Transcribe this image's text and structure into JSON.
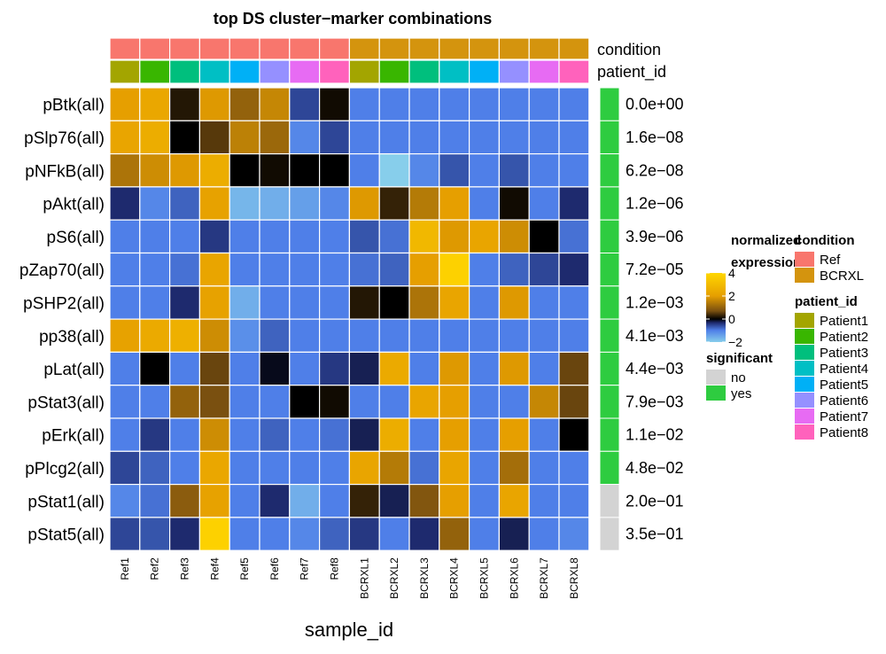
{
  "chart_data": {
    "type": "heatmap",
    "title": "top DS cluster−marker combinations",
    "xlabel": "sample_id",
    "columns": [
      "Ref1",
      "Ref2",
      "Ref3",
      "Ref4",
      "Ref5",
      "Ref6",
      "Ref7",
      "Ref8",
      "BCRXL1",
      "BCRXL2",
      "BCRXL3",
      "BCRXL4",
      "BCRXL5",
      "BCRXL6",
      "BCRXL7",
      "BCRXL8"
    ],
    "column_annotations": {
      "condition": {
        "label": "condition",
        "values": [
          "Ref",
          "Ref",
          "Ref",
          "Ref",
          "Ref",
          "Ref",
          "Ref",
          "Ref",
          "BCRXL",
          "BCRXL",
          "BCRXL",
          "BCRXL",
          "BCRXL",
          "BCRXL",
          "BCRXL",
          "BCRXL"
        ]
      },
      "patient_id": {
        "label": "patient_id",
        "values": [
          "Patient1",
          "Patient2",
          "Patient3",
          "Patient4",
          "Patient5",
          "Patient6",
          "Patient7",
          "Patient8",
          "Patient1",
          "Patient2",
          "Patient3",
          "Patient4",
          "Patient5",
          "Patient6",
          "Patient7",
          "Patient8"
        ]
      }
    },
    "rows": [
      "pBtk(all)",
      "pSlp76(all)",
      "pNFkB(all)",
      "pAkt(all)",
      "pS6(all)",
      "pZap70(all)",
      "pSHP2(all)",
      "pp38(all)",
      "pLat(all)",
      "pStat3(all)",
      "pErk(all)",
      "pPlcg2(all)",
      "pStat1(all)",
      "pStat5(all)"
    ],
    "p_values": [
      "0.0e+00",
      "1.6e−08",
      "6.2e−08",
      "1.2e−06",
      "3.9e−06",
      "7.2e−05",
      "1.2e−03",
      "4.1e−03",
      "4.4e−03",
      "7.9e−03",
      "1.1e−02",
      "4.8e−02",
      "2.0e−01",
      "3.5e−01"
    ],
    "significant": [
      "yes",
      "yes",
      "yes",
      "yes",
      "yes",
      "yes",
      "yes",
      "yes",
      "yes",
      "yes",
      "yes",
      "yes",
      "no",
      "no"
    ],
    "values": [
      [
        2.0,
        2.3,
        0.2,
        1.9,
        1.0,
        1.6,
        -0.6,
        0.1,
        -1.0,
        -1.0,
        -1.0,
        -1.0,
        -1.0,
        -1.0,
        -1.0,
        -1.0
      ],
      [
        2.2,
        2.5,
        0.0,
        0.5,
        1.5,
        1.1,
        -1.1,
        -0.6,
        -1.0,
        -1.0,
        -1.0,
        -1.0,
        -1.0,
        -1.0,
        -1.0,
        -1.0
      ],
      [
        1.3,
        1.7,
        1.9,
        2.5,
        0.0,
        0.1,
        0.0,
        0.0,
        -1.0,
        -2.0,
        -1.1,
        -0.7,
        -1.0,
        -0.7,
        -1.0,
        -1.0
      ],
      [
        -0.4,
        -1.1,
        -0.8,
        2.1,
        -1.7,
        -1.6,
        -1.4,
        -1.1,
        1.9,
        0.3,
        1.4,
        2.0,
        -1.0,
        0.1,
        -1.0,
        -0.4
      ],
      [
        -1.0,
        -1.0,
        -1.0,
        -0.5,
        -1.0,
        -1.0,
        -1.0,
        -1.0,
        -0.7,
        -0.9,
        2.9,
        1.9,
        2.2,
        1.7,
        0.0,
        -0.9
      ],
      [
        -1.0,
        -1.0,
        -0.9,
        2.2,
        -1.0,
        -1.0,
        -1.0,
        -1.0,
        -0.9,
        -0.8,
        2.0,
        3.8,
        -1.0,
        -0.8,
        -0.6,
        -0.4
      ],
      [
        -1.0,
        -1.0,
        -0.4,
        2.1,
        -1.6,
        -1.0,
        -1.0,
        -1.0,
        0.2,
        0.0,
        1.3,
        2.2,
        -1.0,
        1.9,
        -1.0,
        -1.0
      ],
      [
        2.1,
        2.4,
        2.6,
        1.7,
        -1.2,
        -0.8,
        -1.0,
        -1.0,
        -1.0,
        -1.0,
        -1.0,
        -1.0,
        -1.0,
        -1.0,
        -1.0,
        -1.0
      ],
      [
        -1.0,
        0.0,
        -1.0,
        0.6,
        -1.0,
        -0.1,
        -1.0,
        -0.5,
        -0.3,
        2.4,
        -1.0,
        1.9,
        -1.0,
        1.9,
        -1.0,
        0.6
      ],
      [
        -1.0,
        -1.0,
        1.0,
        0.7,
        -1.0,
        -1.0,
        0.0,
        0.1,
        -1.0,
        -1.0,
        2.2,
        2.0,
        -1.0,
        -1.0,
        1.6,
        0.6
      ],
      [
        -1.0,
        -0.5,
        -1.0,
        1.7,
        -1.0,
        -0.8,
        -1.0,
        -0.9,
        -0.3,
        2.5,
        -1.0,
        2.0,
        -1.0,
        2.0,
        -1.0,
        0.0
      ],
      [
        -0.6,
        -0.8,
        -1.0,
        2.3,
        -1.0,
        -1.0,
        -1.0,
        -1.0,
        2.2,
        1.4,
        -0.9,
        2.2,
        -1.0,
        1.2,
        -1.0,
        -1.0
      ],
      [
        -1.1,
        -0.9,
        0.9,
        2.1,
        -1.0,
        -0.4,
        -1.6,
        -1.0,
        0.3,
        -0.3,
        0.8,
        2.0,
        -1.0,
        2.2,
        -1.0,
        -1.0
      ],
      [
        -0.6,
        -0.7,
        -0.4,
        3.8,
        -1.0,
        -1.0,
        -1.1,
        -0.8,
        -0.5,
        -1.0,
        -0.4,
        1.0,
        -1.0,
        -0.3,
        -1.0,
        -1.1
      ]
    ],
    "legends": {
      "expression": {
        "title_lines": [
          "normalized",
          "expression"
        ],
        "ticks": [
          "4",
          "2",
          "0",
          "−2"
        ],
        "range": [
          -2,
          4
        ]
      },
      "significant": {
        "title": "significant",
        "items": [
          {
            "label": "no",
            "color": "#D3D3D3"
          },
          {
            "label": "yes",
            "color": "#2ECC40"
          }
        ]
      },
      "condition": {
        "title": "condition",
        "items": [
          {
            "label": "Ref",
            "color": "#F8766D"
          },
          {
            "label": "BCRXL",
            "color": "#D4940E"
          }
        ]
      },
      "patient_id": {
        "title": "patient_id",
        "items": [
          {
            "label": "Patient1",
            "color": "#A3A500"
          },
          {
            "label": "Patient2",
            "color": "#39B600"
          },
          {
            "label": "Patient3",
            "color": "#00BF7D"
          },
          {
            "label": "Patient4",
            "color": "#00BFC4"
          },
          {
            "label": "Patient5",
            "color": "#00B0F6"
          },
          {
            "label": "Patient6",
            "color": "#9590FF"
          },
          {
            "label": "Patient7",
            "color": "#E76BF3"
          },
          {
            "label": "Patient8",
            "color": "#FF62BC"
          }
        ]
      }
    },
    "colors": {
      "expr_low": "#87CEEB",
      "expr_lowmid": "#4F7FE8",
      "expr_mid": "#000000",
      "expr_high": "#E69F00",
      "expr_top": "#FFD700"
    }
  }
}
